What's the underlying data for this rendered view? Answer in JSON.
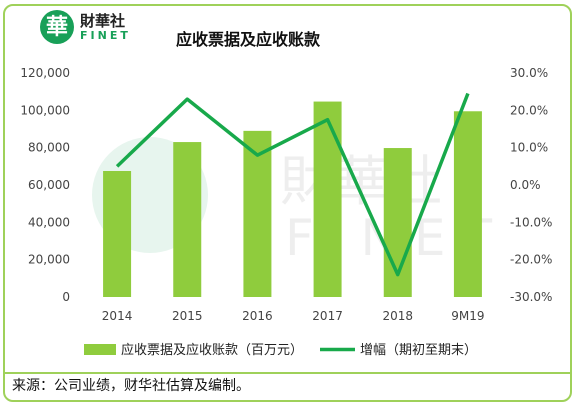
{
  "header": {
    "logo_glyph": "華",
    "logo_cn": "財華社",
    "logo_en": "FINET",
    "brand_color": "#18a058"
  },
  "chart_data": {
    "type": "bar",
    "title": "应收票据及应收账款",
    "categories": [
      "2014",
      "2015",
      "2016",
      "2017",
      "2018",
      "9M19"
    ],
    "series": [
      {
        "name": "应收票据及应收账款（百万元）",
        "type": "bar",
        "axis": "left",
        "color": "#8fcc3d",
        "values": [
          67500,
          83000,
          89000,
          104700,
          79800,
          99500
        ]
      },
      {
        "name": "增幅（期初至期末）",
        "type": "line",
        "axis": "right",
        "color": "#18a94b",
        "values": [
          5.0,
          23.0,
          8.0,
          17.5,
          -24.0,
          24.5
        ]
      }
    ],
    "y_left": {
      "ticks": [
        "0",
        "20,000",
        "40,000",
        "60,000",
        "80,000",
        "100,000",
        "120,000"
      ],
      "range": [
        0,
        120000
      ]
    },
    "y_right": {
      "ticks": [
        "-30.0%",
        "-20.0%",
        "-10.0%",
        "0.0%",
        "10.0%",
        "20.0%",
        "30.0%"
      ],
      "range": [
        -30,
        30
      ]
    },
    "grid": false,
    "legend_position": "bottom"
  },
  "footer": {
    "source": "来源：公司业绩，财华社估算及编制。"
  }
}
